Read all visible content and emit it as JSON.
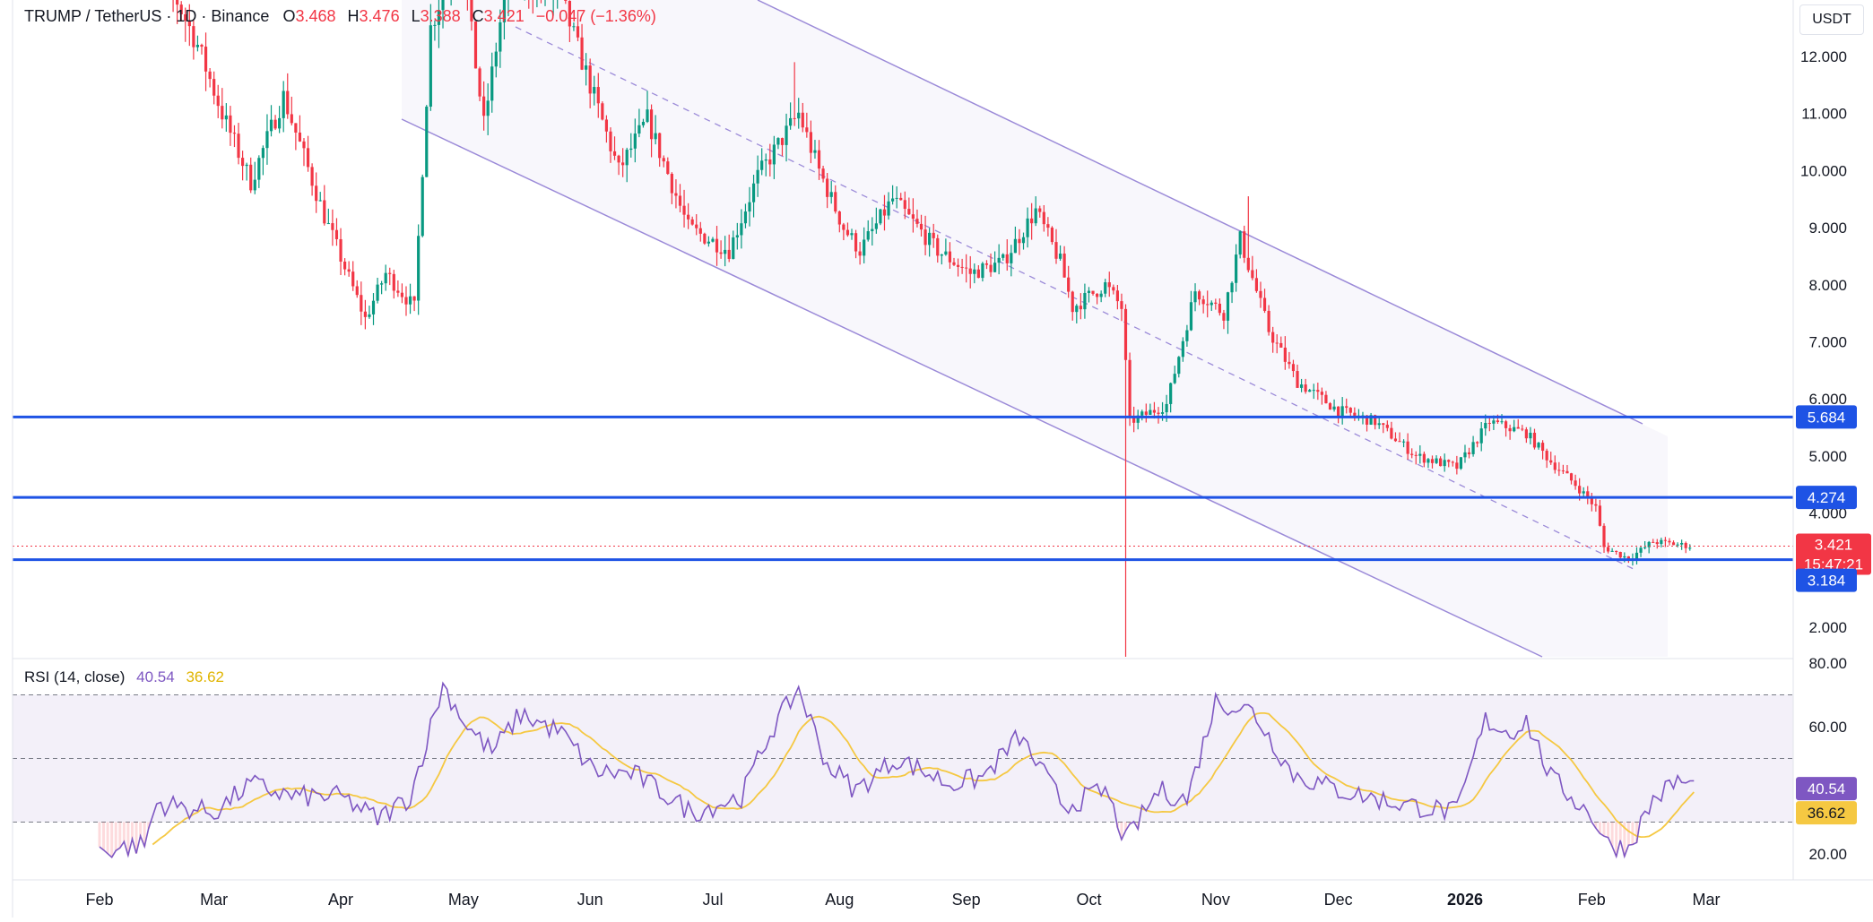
{
  "header": {
    "symbol": "TRUMP / TetherUS · 1D · Binance",
    "open_label": "O",
    "open": "3.468",
    "high_label": "H",
    "high": "3.476",
    "low_label": "L",
    "low": "3.388",
    "close_label": "C",
    "close": "3.421",
    "change": "−0.047 (−1.36%)"
  },
  "price_axis": {
    "currency": "USDT",
    "ticks": [
      "12.000",
      "11.000",
      "10.000",
      "9.000",
      "8.000",
      "7.000",
      "6.000",
      "5.000",
      "4.000",
      "2.000"
    ],
    "level_badges": [
      "5.684",
      "4.274",
      "3.184"
    ],
    "last_price": "3.421",
    "countdown": "15:47:21"
  },
  "rsi": {
    "label": "RSI (14, close)",
    "value": "40.54",
    "ma_value": "36.62",
    "ticks": [
      "80.00",
      "60.00",
      "20.00"
    ]
  },
  "time_axis": [
    "Feb",
    "Mar",
    "Apr",
    "May",
    "Jun",
    "Jul",
    "Aug",
    "Sep",
    "Oct",
    "Nov",
    "Dec",
    "2026",
    "Feb",
    "Mar"
  ],
  "colors": {
    "up": "#089981",
    "down": "#f23645",
    "level": "#1e53e5",
    "channel": "#9b8ad8",
    "rsi": "#7e57c2",
    "rsi_ma": "#f5c842"
  },
  "chart_data": {
    "type": "candlestick",
    "title": "TRUMP / TetherUS · 1D · Binance",
    "y_axis": "USDT",
    "ylim": [
      1.8,
      12.6
    ],
    "x_range": [
      "2025-01-20",
      "2026-03-01"
    ],
    "horizontal_levels": [
      5.684,
      4.274,
      3.184
    ],
    "price_path": [
      {
        "date": "2025-02-10",
        "price": 14.5
      },
      {
        "date": "2025-02-25",
        "price": 12.2
      },
      {
        "date": "2025-03-03",
        "price": 11.0
      },
      {
        "date": "2025-03-10",
        "price": 9.8
      },
      {
        "date": "2025-03-18",
        "price": 11.3
      },
      {
        "date": "2025-03-28",
        "price": 9.2
      },
      {
        "date": "2025-04-07",
        "price": 7.4
      },
      {
        "date": "2025-04-12",
        "price": 8.2
      },
      {
        "date": "2025-04-19",
        "price": 7.6
      },
      {
        "date": "2025-04-23",
        "price": 12.5
      },
      {
        "date": "2025-04-30",
        "price": 14.0
      },
      {
        "date": "2025-05-06",
        "price": 10.8
      },
      {
        "date": "2025-05-12",
        "price": 13.5
      },
      {
        "date": "2025-05-25",
        "price": 13.0
      },
      {
        "date": "2025-06-01",
        "price": 11.5
      },
      {
        "date": "2025-06-08",
        "price": 10.0
      },
      {
        "date": "2025-06-15",
        "price": 10.9
      },
      {
        "date": "2025-06-25",
        "price": 9.0
      },
      {
        "date": "2025-07-05",
        "price": 8.6
      },
      {
        "date": "2025-07-12",
        "price": 9.9
      },
      {
        "date": "2025-07-22",
        "price": 11.0
      },
      {
        "date": "2025-07-27",
        "price": 10.0
      },
      {
        "date": "2025-08-02",
        "price": 9.0
      },
      {
        "date": "2025-08-06",
        "price": 8.6
      },
      {
        "date": "2025-08-14",
        "price": 9.5
      },
      {
        "date": "2025-08-25",
        "price": 8.6
      },
      {
        "date": "2025-09-02",
        "price": 8.2
      },
      {
        "date": "2025-09-10",
        "price": 8.4
      },
      {
        "date": "2025-09-18",
        "price": 9.3
      },
      {
        "date": "2025-09-24",
        "price": 8.4
      },
      {
        "date": "2025-09-27",
        "price": 7.6
      },
      {
        "date": "2025-10-05",
        "price": 8.0
      },
      {
        "date": "2025-10-09",
        "price": 7.6
      },
      {
        "date": "2025-10-11",
        "price": 5.6
      },
      {
        "date": "2025-10-20",
        "price": 5.9
      },
      {
        "date": "2025-10-27",
        "price": 7.9
      },
      {
        "date": "2025-11-03",
        "price": 7.5
      },
      {
        "date": "2025-11-07",
        "price": 8.8
      },
      {
        "date": "2025-11-14",
        "price": 7.2
      },
      {
        "date": "2025-11-21",
        "price": 6.3
      },
      {
        "date": "2025-12-01",
        "price": 5.8
      },
      {
        "date": "2025-12-10",
        "price": 5.6
      },
      {
        "date": "2025-12-20",
        "price": 5.0
      },
      {
        "date": "2025-12-30",
        "price": 4.8
      },
      {
        "date": "2026-01-03",
        "price": 5.2
      },
      {
        "date": "2026-01-07",
        "price": 5.6
      },
      {
        "date": "2026-01-16",
        "price": 5.4
      },
      {
        "date": "2026-01-22",
        "price": 4.9
      },
      {
        "date": "2026-01-28",
        "price": 4.5
      },
      {
        "date": "2026-02-02",
        "price": 4.1
      },
      {
        "date": "2026-02-04",
        "price": 3.4
      },
      {
        "date": "2026-02-10",
        "price": 3.2
      },
      {
        "date": "2026-02-16",
        "price": 3.5
      },
      {
        "date": "2026-02-22",
        "price": 3.45
      },
      {
        "date": "2026-02-25",
        "price": 3.42
      }
    ],
    "rsi": {
      "period": 14,
      "ylim": [
        10,
        90
      ],
      "bands": [
        70,
        50,
        30
      ],
      "latest": 40.54,
      "ma_latest": 36.62,
      "path": [
        {
          "date": "2025-02-01",
          "v": 21
        },
        {
          "date": "2025-02-12",
          "v": 23
        },
        {
          "date": "2025-02-15",
          "v": 36
        },
        {
          "date": "2025-03-01",
          "v": 33
        },
        {
          "date": "2025-03-10",
          "v": 42
        },
        {
          "date": "2025-03-20",
          "v": 38
        },
        {
          "date": "2025-04-01",
          "v": 38
        },
        {
          "date": "2025-04-10",
          "v": 31
        },
        {
          "date": "2025-04-18",
          "v": 38
        },
        {
          "date": "2025-04-26",
          "v": 73
        },
        {
          "date": "2025-05-02",
          "v": 60
        },
        {
          "date": "2025-05-08",
          "v": 52
        },
        {
          "date": "2025-05-15",
          "v": 64
        },
        {
          "date": "2025-05-25",
          "v": 58
        },
        {
          "date": "2025-06-02",
          "v": 46
        },
        {
          "date": "2025-06-12",
          "v": 45
        },
        {
          "date": "2025-06-26",
          "v": 33
        },
        {
          "date": "2025-07-08",
          "v": 38
        },
        {
          "date": "2025-07-15",
          "v": 58
        },
        {
          "date": "2025-07-22",
          "v": 72
        },
        {
          "date": "2025-07-29",
          "v": 48
        },
        {
          "date": "2025-08-05",
          "v": 40
        },
        {
          "date": "2025-08-15",
          "v": 50
        },
        {
          "date": "2025-08-28",
          "v": 42
        },
        {
          "date": "2025-09-05",
          "v": 44
        },
        {
          "date": "2025-09-14",
          "v": 57
        },
        {
          "date": "2025-09-20",
          "v": 45
        },
        {
          "date": "2025-09-25",
          "v": 35
        },
        {
          "date": "2025-10-05",
          "v": 40
        },
        {
          "date": "2025-10-10",
          "v": 24
        },
        {
          "date": "2025-10-18",
          "v": 40
        },
        {
          "date": "2025-10-25",
          "v": 37
        },
        {
          "date": "2025-11-01",
          "v": 68
        },
        {
          "date": "2025-11-10",
          "v": 65
        },
        {
          "date": "2025-11-20",
          "v": 45
        },
        {
          "date": "2025-12-01",
          "v": 40
        },
        {
          "date": "2025-12-15",
          "v": 36
        },
        {
          "date": "2025-12-30",
          "v": 33
        },
        {
          "date": "2026-01-06",
          "v": 62
        },
        {
          "date": "2026-01-12",
          "v": 58
        },
        {
          "date": "2026-01-16",
          "v": 62
        },
        {
          "date": "2026-01-22",
          "v": 44
        },
        {
          "date": "2026-02-01",
          "v": 32
        },
        {
          "date": "2026-02-05",
          "v": 23
        },
        {
          "date": "2026-02-10",
          "v": 22
        },
        {
          "date": "2026-02-16",
          "v": 37
        },
        {
          "date": "2026-02-22",
          "v": 43
        },
        {
          "date": "2026-02-26",
          "v": 41
        }
      ]
    }
  }
}
